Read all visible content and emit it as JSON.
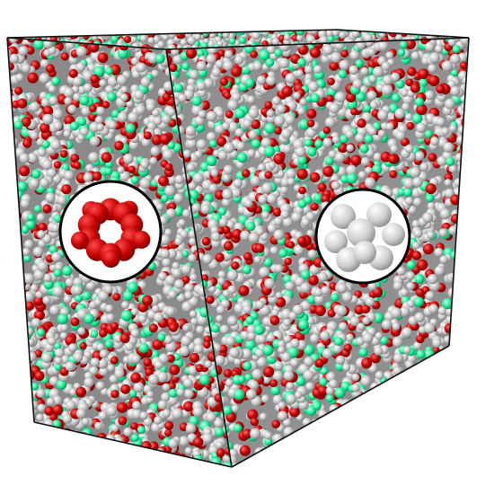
{
  "scene": {
    "subject": "particle-simulation-box",
    "background_color": "#ffffff",
    "particle_colors": {
      "gray": "#bfbfbf",
      "red": "#c40000",
      "green": "#19f09a"
    },
    "particle_mix": {
      "gray": 0.62,
      "red": 0.22,
      "green": 0.16
    },
    "box_edge_color": "#111111"
  },
  "insets": [
    {
      "name": "red-cluster-inset",
      "particle_color": "#c40000",
      "structure": "icosahedral-ring"
    },
    {
      "name": "gray-cluster-inset",
      "particle_color": "#bfbfbf",
      "structure": "octahedral"
    }
  ]
}
